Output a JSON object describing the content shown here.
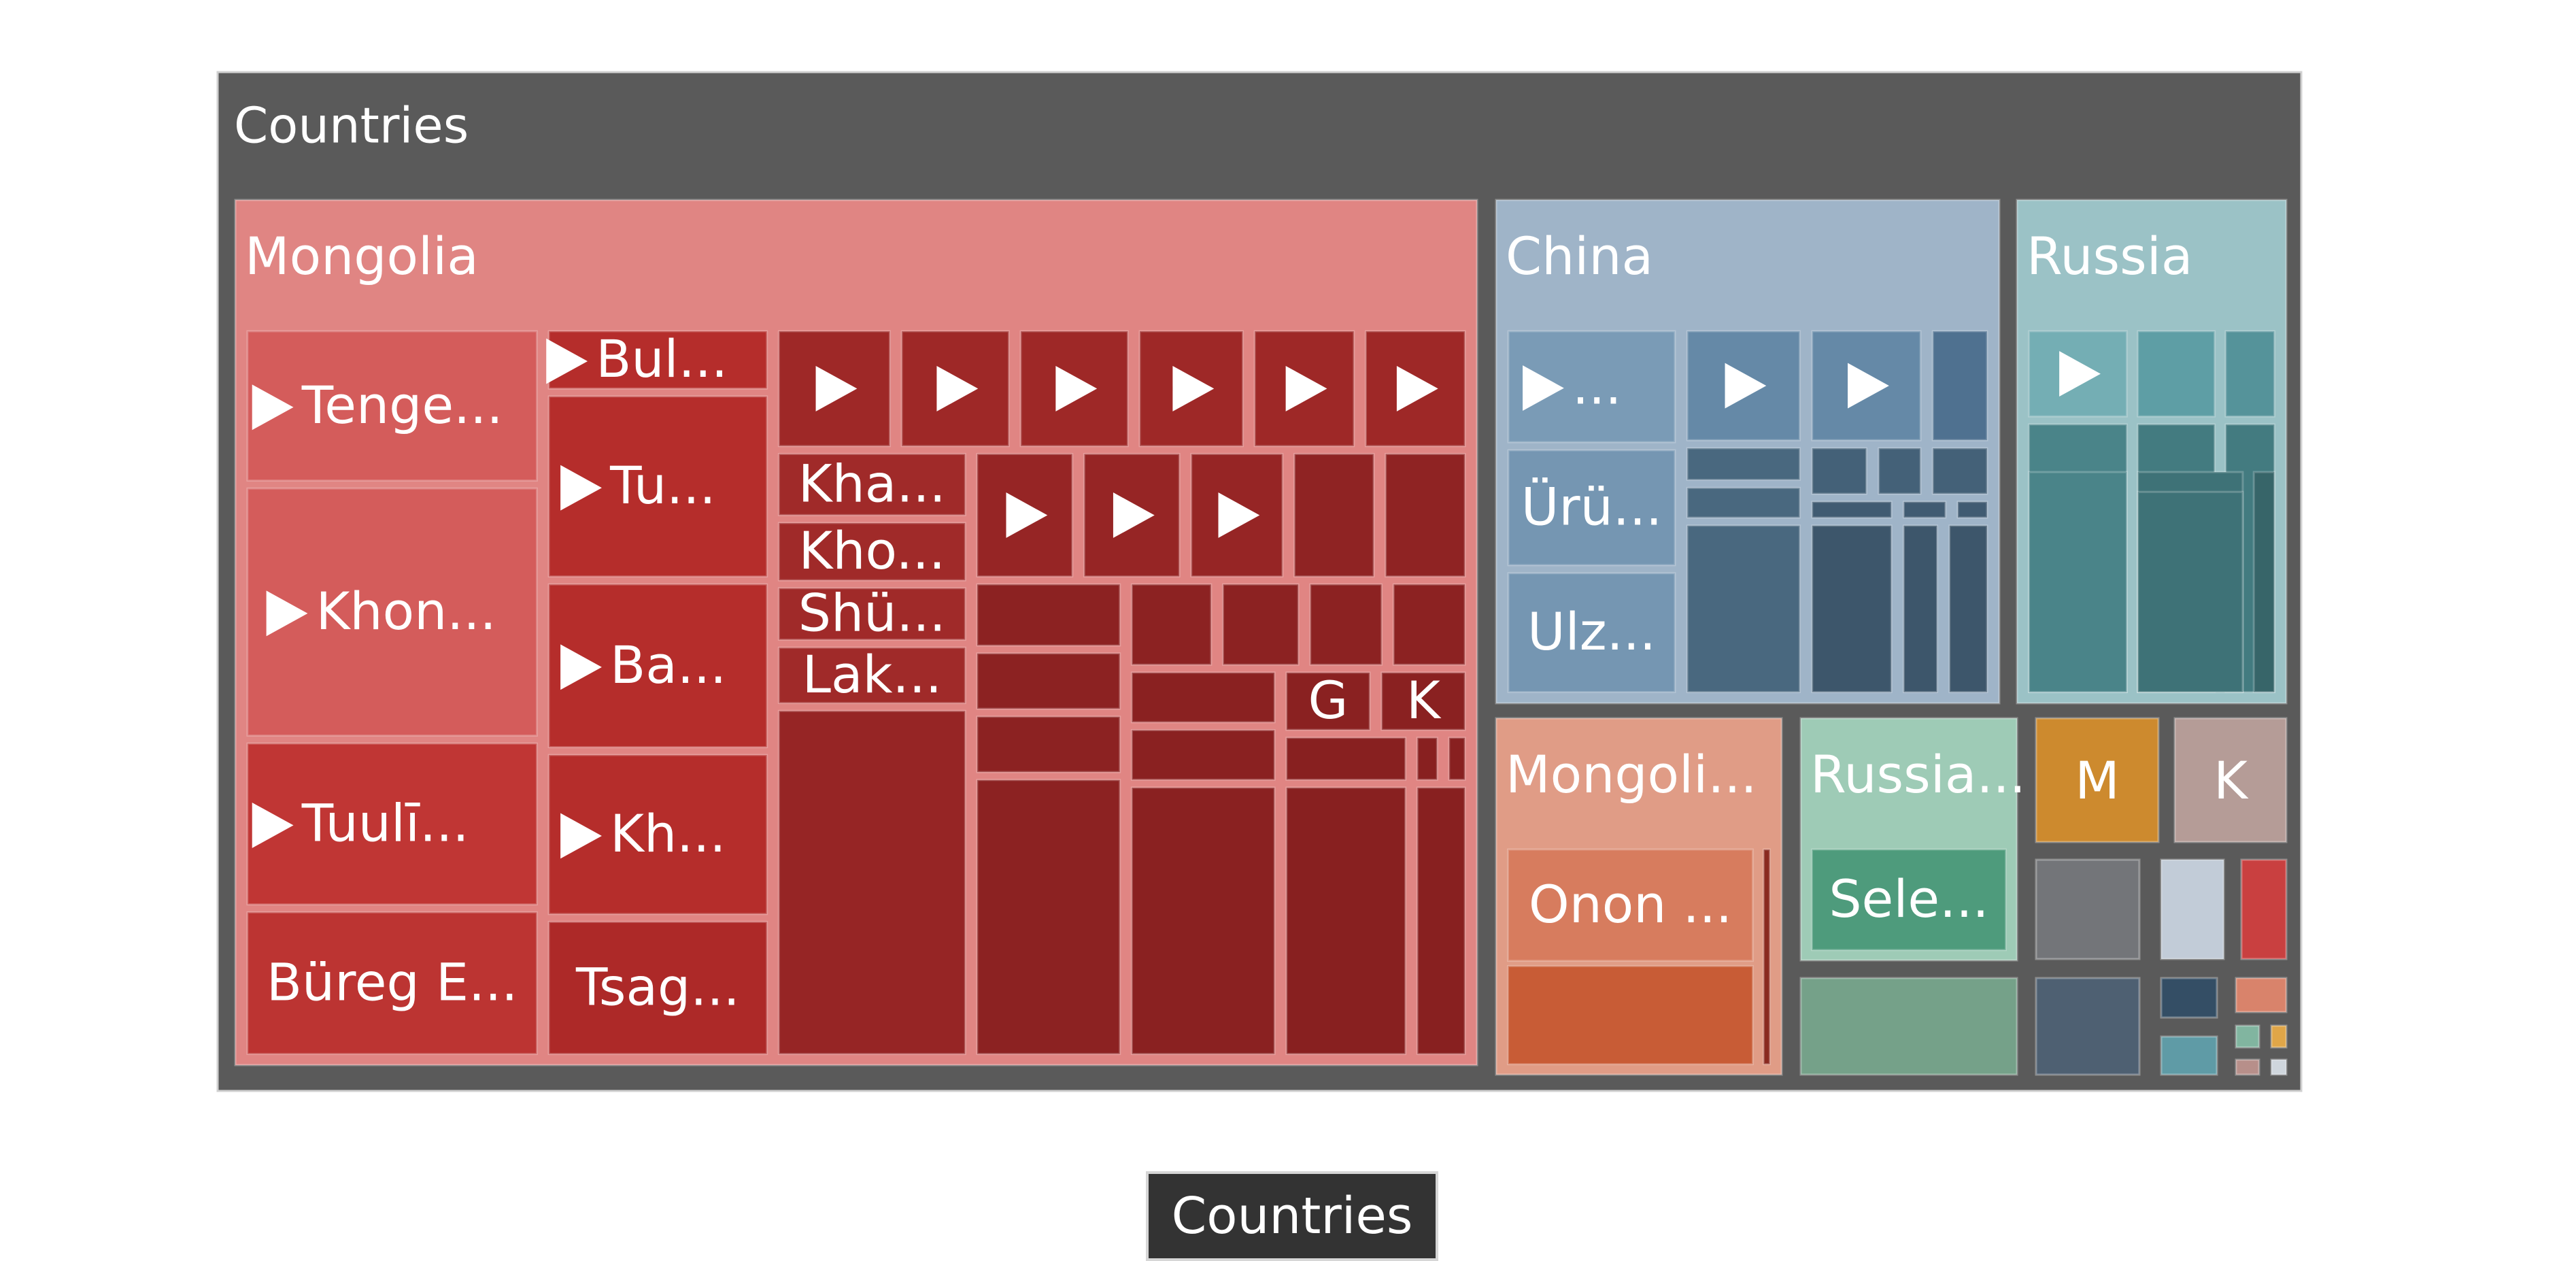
{
  "chart_data": {
    "type": "treemap",
    "title": "Countries",
    "breadcrumb": "Countries",
    "groups": [
      {
        "name": "Mongolia",
        "color": "#e08583",
        "cells": [
          {
            "label": "Tenge...",
            "arrow": true,
            "fill": "#d45c5b",
            "r": [
              0.5,
              64.5,
              74.5,
              144.5
            ]
          },
          {
            "label": "Khon...",
            "arrow": true,
            "fill": "#d45c5b",
            "r": [
              0.5,
              146.5,
              74.5,
              277.5
            ]
          },
          {
            "label": "Tuulī...",
            "arrow": true,
            "fill": "#c03634",
            "r": [
              0.5,
              279.5,
              74.5,
              365.5
            ]
          },
          {
            "label": "Büreg E...",
            "arrow": false,
            "fill": "#bc3432",
            "r": [
              0.5,
              367.5,
              74.5,
              443.5
            ]
          },
          {
            "label": "Bul...",
            "arrow": true,
            "fill": "#b52d2b",
            "r": [
              76.5,
              64.5,
              132.5,
              96.5
            ]
          },
          {
            "label": "Tu...",
            "arrow": true,
            "fill": "#b52d2b",
            "r": [
              76.5,
              98.5,
              132.5,
              194.5
            ]
          },
          {
            "label": "Ba...",
            "arrow": true,
            "fill": "#b52d2b",
            "r": [
              76.5,
              196.5,
              132.5,
              283.5
            ]
          },
          {
            "label": "Kh...",
            "arrow": true,
            "fill": "#b52d2b",
            "r": [
              76.5,
              285.5,
              132.5,
              370.5
            ]
          },
          {
            "label": "Tsag...",
            "arrow": false,
            "fill": "#ad2928",
            "r": [
              76.5,
              372.5,
              132.5,
              443.5
            ]
          },
          {
            "label": "",
            "arrow": true,
            "fill": "#9e2827",
            "r": [
              134.5,
              64.5,
              163.5,
              126.5
            ]
          },
          {
            "label": "",
            "arrow": true,
            "fill": "#9e2827",
            "r": [
              165.5,
              64.5,
              193.5,
              126.5
            ]
          },
          {
            "label": "",
            "arrow": true,
            "fill": "#9e2827",
            "r": [
              195.5,
              64.5,
              223.5,
              126.5
            ]
          },
          {
            "label": "",
            "arrow": true,
            "fill": "#9e2827",
            "r": [
              225.5,
              64.5,
              252.5,
              126.5
            ]
          },
          {
            "label": "",
            "arrow": true,
            "fill": "#9e2827",
            "r": [
              254.5,
              64.5,
              280.5,
              126.5
            ]
          },
          {
            "label": "",
            "arrow": true,
            "fill": "#9e2827",
            "r": [
              282.5,
              64.5,
              308.5,
              126.5
            ]
          },
          {
            "label": "Kha...",
            "arrow": false,
            "fill": "#a02a29",
            "r": [
              134.5,
              128.5,
              182.5,
              162.5
            ]
          },
          {
            "label": "Kho...",
            "arrow": false,
            "fill": "#a02a29",
            "r": [
              134.5,
              164.5,
              182.5,
              196.5
            ]
          },
          {
            "label": "Shü...",
            "arrow": false,
            "fill": "#a02a29",
            "r": [
              134.5,
              198.5,
              182.5,
              227.5
            ]
          },
          {
            "label": "Lak...",
            "arrow": false,
            "fill": "#a02a29",
            "r": [
              134.5,
              229.5,
              182.5,
              260.5
            ]
          },
          {
            "label": "",
            "arrow": false,
            "fill": "#962525",
            "r": [
              134.5,
              262.5,
              182.5,
              443.5
            ]
          },
          {
            "label": "",
            "arrow": true,
            "fill": "#962525",
            "r": [
              184.5,
              128.5,
              209.5,
              194.5
            ]
          },
          {
            "label": "",
            "arrow": true,
            "fill": "#962525",
            "r": [
              211.5,
              128.5,
              236.5,
              194.5
            ]
          },
          {
            "label": "",
            "arrow": true,
            "fill": "#962525",
            "r": [
              238.5,
              128.5,
              262.5,
              194.5
            ]
          },
          {
            "label": "",
            "arrow": false,
            "fill": "#8f2323",
            "r": [
              264.5,
              128.5,
              285.5,
              194.5
            ]
          },
          {
            "label": "",
            "arrow": false,
            "fill": "#8f2323",
            "r": [
              287.5,
              128.5,
              308.5,
              194.5
            ]
          },
          {
            "label": "",
            "arrow": false,
            "fill": "#8c2222",
            "r": [
              184.5,
              196.5,
              221.5,
              230.5
            ]
          },
          {
            "label": "",
            "arrow": false,
            "fill": "#8c2222",
            "r": [
              184.5,
              232.5,
              221.5,
              263.5
            ]
          },
          {
            "label": "",
            "arrow": false,
            "fill": "#8c2222",
            "r": [
              184.5,
              265.5,
              221.5,
              296.5
            ]
          },
          {
            "label": "",
            "arrow": false,
            "fill": "#8c2222",
            "r": [
              184.5,
              298.5,
              221.5,
              443.5
            ]
          },
          {
            "label": "",
            "arrow": false,
            "fill": "#8c2222",
            "r": [
              223.5,
              196.5,
              244.5,
              240.5
            ]
          },
          {
            "label": "",
            "arrow": false,
            "fill": "#8c2222",
            "r": [
              246.5,
              196.5,
              266.5,
              240.5
            ]
          },
          {
            "label": "",
            "arrow": false,
            "fill": "#8c2222",
            "r": [
              268.5,
              196.5,
              287.5,
              240.5
            ]
          },
          {
            "label": "",
            "arrow": false,
            "fill": "#8c2222",
            "r": [
              289.5,
              196.5,
              308.5,
              240.5
            ]
          },
          {
            "label": "",
            "arrow": false,
            "fill": "#8a2121",
            "r": [
              223.5,
              242.5,
              260.5,
              270.5
            ]
          },
          {
            "label": "",
            "arrow": false,
            "fill": "#8a2121",
            "r": [
              223.5,
              272.5,
              260.5,
              300.5
            ]
          },
          {
            "label": "",
            "arrow": false,
            "fill": "#8a2121",
            "r": [
              223.5,
              302.5,
              260.5,
              443.5
            ]
          },
          {
            "label": "G",
            "arrow": false,
            "fill": "#8a2121",
            "r": [
              262.5,
              242.5,
              284.5,
              274.5
            ]
          },
          {
            "label": "K",
            "arrow": false,
            "fill": "#8a2121",
            "r": [
              286.5,
              242.5,
              308.5,
              274.5
            ]
          },
          {
            "label": "",
            "arrow": false,
            "fill": "#882020",
            "r": [
              262.5,
              276.5,
              293.5,
              300.5
            ]
          },
          {
            "label": "",
            "arrow": false,
            "fill": "#882020",
            "r": [
              262.5,
              302.5,
              293.5,
              443.5
            ]
          },
          {
            "label": "",
            "arrow": false,
            "fill": "#882020",
            "r": [
              295.5,
              276.5,
              301.5,
              300.5
            ]
          },
          {
            "label": "",
            "arrow": false,
            "fill": "#882020",
            "r": [
              303.5,
              276.5,
              308.5,
              300.5
            ]
          },
          {
            "label": "",
            "arrow": false,
            "fill": "#882020",
            "r": [
              295.5,
              302.5,
              308.5,
              443.5
            ]
          }
        ]
      },
      {
        "name": "China",
        "color": "#9fb4c8",
        "cells": [
          {
            "label": "...",
            "arrow": true,
            "fill": "#7a9bb6",
            "r": [
              0.5,
              64.5,
              41.5,
              122.5
            ]
          },
          {
            "label": "Ürü...",
            "arrow": false,
            "fill": "#7596b2",
            "r": [
              0.5,
              124.5,
              41.5,
              184.5
            ]
          },
          {
            "label": "Ulz...",
            "arrow": false,
            "fill": "#7596b2",
            "r": [
              0.5,
              186.5,
              41.5,
              248.5
            ]
          },
          {
            "label": "",
            "arrow": true,
            "fill": "#6589a7",
            "r": [
              43.5,
              64.5,
              71.5,
              121.5
            ]
          },
          {
            "label": "",
            "arrow": true,
            "fill": "#6589a7",
            "r": [
              73.5,
              64.5,
              100.5,
              121.5
            ]
          },
          {
            "label": "",
            "arrow": false,
            "fill": "#4f7190",
            "r": [
              102.5,
              64.5,
              116.5,
              121.5
            ]
          },
          {
            "label": "",
            "arrow": false,
            "fill": "#49687f",
            "r": [
              43.5,
              123.5,
              71.5,
              141.5
            ]
          },
          {
            "label": "",
            "arrow": false,
            "fill": "#49687f",
            "r": [
              43.5,
              143.5,
              71.5,
              160.5
            ]
          },
          {
            "label": "",
            "arrow": false,
            "fill": "#49687f",
            "r": [
              43.5,
              162.5,
              71.5,
              248.5
            ]
          },
          {
            "label": "",
            "arrow": false,
            "fill": "#446178",
            "r": [
              73.5,
              123.5,
              87.5,
              148.5
            ]
          },
          {
            "label": "",
            "arrow": false,
            "fill": "#446178",
            "r": [
              89.5,
              123.5,
              100.5,
              148.5
            ]
          },
          {
            "label": "",
            "arrow": false,
            "fill": "#446178",
            "r": [
              102.5,
              123.5,
              116.5,
              148.5
            ]
          },
          {
            "label": "",
            "arrow": false,
            "fill": "#405b72",
            "r": [
              73.5,
              150.5,
              93.5,
              160.5
            ]
          },
          {
            "label": "",
            "arrow": false,
            "fill": "#405b72",
            "r": [
              95.5,
              150.5,
              106.5,
              160.5
            ]
          },
          {
            "label": "",
            "arrow": false,
            "fill": "#405b72",
            "r": [
              108.5,
              150.5,
              116.5,
              160.5
            ]
          },
          {
            "label": "",
            "arrow": false,
            "fill": "#3d566b",
            "r": [
              73.5,
              162.5,
              93.5,
              248.5
            ]
          },
          {
            "label": "",
            "arrow": false,
            "fill": "#3d566b",
            "r": [
              95.5,
              162.5,
              104.5,
              248.5
            ]
          },
          {
            "label": "",
            "arrow": false,
            "fill": "#3d566b",
            "r": [
              106.5,
              162.5,
              116.5,
              248.5
            ]
          }
        ]
      },
      {
        "name": "Russia",
        "color": "#9bc2c6",
        "cells": [
          {
            "label": "",
            "arrow": true,
            "fill": "#74aeb4",
            "r": [
              0.5,
              64.5,
              29.5,
              109.5
            ]
          },
          {
            "label": "",
            "arrow": false,
            "fill": "#5e9ea5",
            "r": [
              31.5,
              64.5,
              54.5,
              109.5
            ]
          },
          {
            "label": "",
            "arrow": false,
            "fill": "#55939a",
            "r": [
              56.5,
              64.5,
              71.5,
              109.5
            ]
          },
          {
            "label": "",
            "arrow": false,
            "fill": "#4a8489",
            "r": [
              0.5,
              111.5,
              29.5,
              248.5
            ]
          },
          {
            "label": "",
            "arrow": false,
            "fill": "#437b80",
            "r": [
              31.5,
              111.5,
              54.5,
              248.5
            ]
          },
          {
            "label": "",
            "arrow": false,
            "fill": "#437b80",
            "r": [
              56.5,
              111.5,
              71.5,
              248.5
            ]
          },
          {
            "label": "",
            "arrow": false,
            "fill": "#4a8489",
            "r": [
              0.5,
              135.5,
              29.5,
              248.5
            ]
          },
          {
            "label": "",
            "arrow": false,
            "fill": "#3e7277",
            "r": [
              31.5,
              135.5,
              62.5,
              248.5
            ]
          },
          {
            "label": "",
            "arrow": false,
            "fill": "#3e7277",
            "r": [
              31.5,
              145.5,
              62.5,
              248.5
            ]
          },
          {
            "label": "",
            "arrow": false,
            "fill": "#376569",
            "r": [
              64.5,
              135.5,
              71.5,
              248.5
            ]
          }
        ]
      },
      {
        "name": "Mongoli...",
        "color": "#e09c86",
        "cells": [
          {
            "label": "Onon ...",
            "arrow": false,
            "fill": "#d77c5e",
            "r": [
              0.5,
              64.5,
              73.5,
              264.5
            ]
          },
          {
            "label": "",
            "arrow": false,
            "fill": "#c85c36",
            "r": [
              0.5,
              266.5,
              73.5,
              443.5
            ]
          },
          {
            "label": "",
            "arrow": false,
            "fill": "#8a2a20",
            "r": [
              75.5,
              64.5,
              78.5,
              443.5
            ]
          }
        ]
      },
      {
        "name": "Russia...",
        "color": "#9ecbb6",
        "cells": [
          {
            "label": "Sele...",
            "arrow": false,
            "fill": "#4e9b7c",
            "r": [
              0.5,
              64.5,
              99.5,
              443.5
            ]
          }
        ]
      },
      {
        "name": "",
        "color": "#75a189",
        "cells": []
      },
      {
        "name": "M",
        "color": "#cd8a2e",
        "cells": []
      },
      {
        "name": "K",
        "color": "#b59c97",
        "cells": []
      },
      {
        "name": "",
        "color": "#737579",
        "cells": []
      },
      {
        "name": "",
        "color": "#c2ccd8",
        "cells": []
      },
      {
        "name": "",
        "color": "#c94040",
        "cells": []
      },
      {
        "name": "",
        "color": "#4e6072",
        "cells": []
      },
      {
        "name": "",
        "color": "#344e65",
        "cells": []
      },
      {
        "name": "",
        "color": "#d9836b",
        "cells": []
      },
      {
        "name": "",
        "color": "#5f9ba6",
        "cells": []
      },
      {
        "name": "",
        "color": "#81b5a0",
        "cells": []
      },
      {
        "name": "",
        "color": "#e0a648",
        "cells": []
      },
      {
        "name": "",
        "color": "#b78f8a",
        "cells": []
      },
      {
        "name": "",
        "color": "#cfd6dd",
        "cells": []
      }
    ]
  }
}
